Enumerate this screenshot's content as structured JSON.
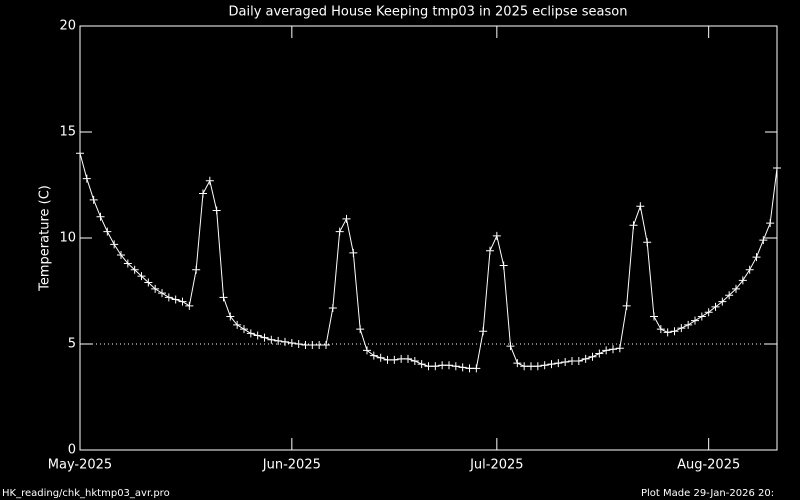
{
  "chart_data": {
    "type": "line",
    "title": "Daily averaged House Keeping tmp03 in 2025 eclipse season",
    "ylabel": "Temperature (C)",
    "footer_left": "HK_reading/chk_hktmp03_avr.pro",
    "footer_right": "Plot Made 29-Jan-2026 20:",
    "x": [
      0,
      1,
      2,
      3,
      4,
      5,
      6,
      7,
      8,
      9,
      10,
      11,
      12,
      13,
      14,
      15,
      16,
      17,
      18,
      19,
      20,
      21,
      22,
      23,
      24,
      25,
      26,
      27,
      28,
      29,
      30,
      31,
      32,
      33,
      34,
      35,
      36,
      37,
      38,
      39,
      40,
      41,
      42,
      43,
      44,
      45,
      46,
      47,
      48,
      49,
      50,
      51,
      52,
      53,
      54,
      55,
      56,
      57,
      58,
      59,
      60,
      61,
      62,
      63,
      64,
      65,
      66,
      67,
      68,
      69,
      70,
      71,
      72,
      73,
      74,
      75,
      76,
      77,
      78,
      79,
      80,
      81,
      82,
      83,
      84,
      85,
      86,
      87,
      88,
      89,
      90,
      91,
      92,
      93,
      94,
      95,
      96,
      97,
      98,
      99,
      100,
      101,
      102
    ],
    "series": [
      {
        "name": "tmp03",
        "color": "#ffffff",
        "values": [
          14.0,
          12.8,
          11.8,
          11.0,
          10.3,
          9.7,
          9.2,
          8.8,
          8.5,
          8.2,
          7.9,
          7.6,
          7.4,
          7.2,
          7.1,
          7.0,
          6.8,
          8.5,
          12.1,
          12.7,
          11.3,
          7.2,
          6.3,
          5.9,
          5.7,
          5.5,
          5.4,
          5.3,
          5.2,
          5.15,
          5.1,
          5.05,
          5.0,
          4.95,
          4.95,
          4.95,
          4.95,
          6.7,
          10.3,
          10.9,
          9.3,
          5.7,
          4.7,
          4.45,
          4.35,
          4.25,
          4.25,
          4.3,
          4.3,
          4.2,
          4.05,
          3.95,
          3.95,
          4.0,
          4.0,
          3.95,
          3.9,
          3.85,
          3.85,
          5.6,
          9.4,
          10.1,
          8.7,
          4.9,
          4.1,
          3.95,
          3.95,
          3.95,
          4.0,
          4.05,
          4.1,
          4.15,
          4.2,
          4.2,
          4.3,
          4.4,
          4.55,
          4.7,
          4.75,
          4.8,
          6.8,
          10.6,
          11.5,
          9.8,
          6.3,
          5.7,
          5.55,
          5.6,
          5.75,
          5.9,
          6.1,
          6.3,
          6.5,
          6.75,
          7.0,
          7.3,
          7.6,
          8.0,
          8.5,
          9.1,
          9.9,
          10.7,
          13.3
        ]
      }
    ],
    "xlim": [
      0,
      102
    ],
    "xticks": [
      {
        "value": 0,
        "label": "May-2025"
      },
      {
        "value": 31,
        "label": "Jun-2025"
      },
      {
        "value": 61,
        "label": "Jul-2025"
      },
      {
        "value": 92,
        "label": "Aug-2025"
      }
    ],
    "ylim": [
      0,
      20
    ],
    "yticks": [
      0,
      5,
      10,
      15,
      20
    ],
    "hline": 5
  }
}
